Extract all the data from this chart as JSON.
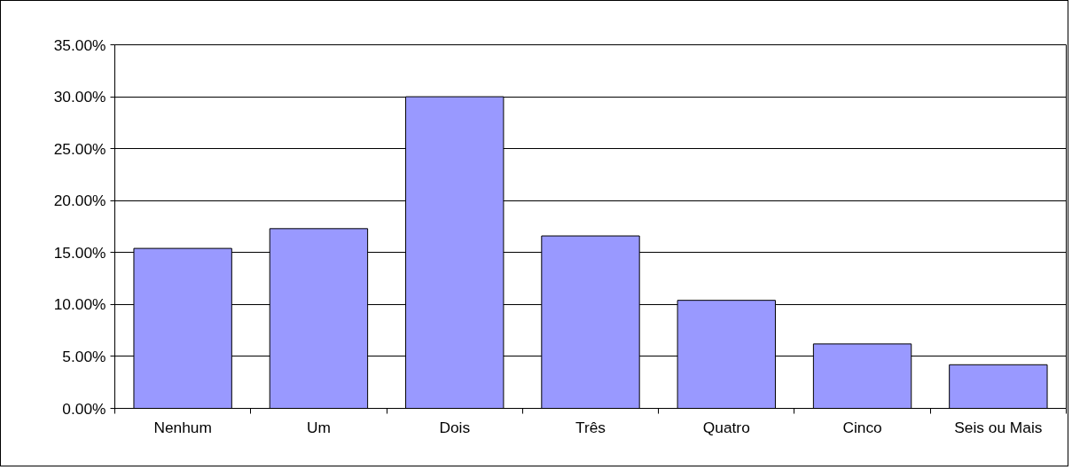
{
  "chart_data": {
    "type": "bar",
    "categories": [
      "Nenhum",
      "Um",
      "Dois",
      "Três",
      "Quatro",
      "Cinco",
      "Seis ou Mais"
    ],
    "values": [
      15.4,
      17.3,
      30.0,
      16.6,
      10.4,
      6.2,
      4.2
    ],
    "color": "#9999ff",
    "ylim": [
      0,
      35
    ],
    "yticks": [
      {
        "value": 0,
        "label": "0.00%"
      },
      {
        "value": 5,
        "label": "5.00%"
      },
      {
        "value": 10,
        "label": "10.00%"
      },
      {
        "value": 15,
        "label": "15.00%"
      },
      {
        "value": 20,
        "label": "20.00%"
      },
      {
        "value": 25,
        "label": "25.00%"
      },
      {
        "value": 30,
        "label": "30.00%"
      },
      {
        "value": 35,
        "label": "35.00%"
      }
    ],
    "grid": "y"
  }
}
